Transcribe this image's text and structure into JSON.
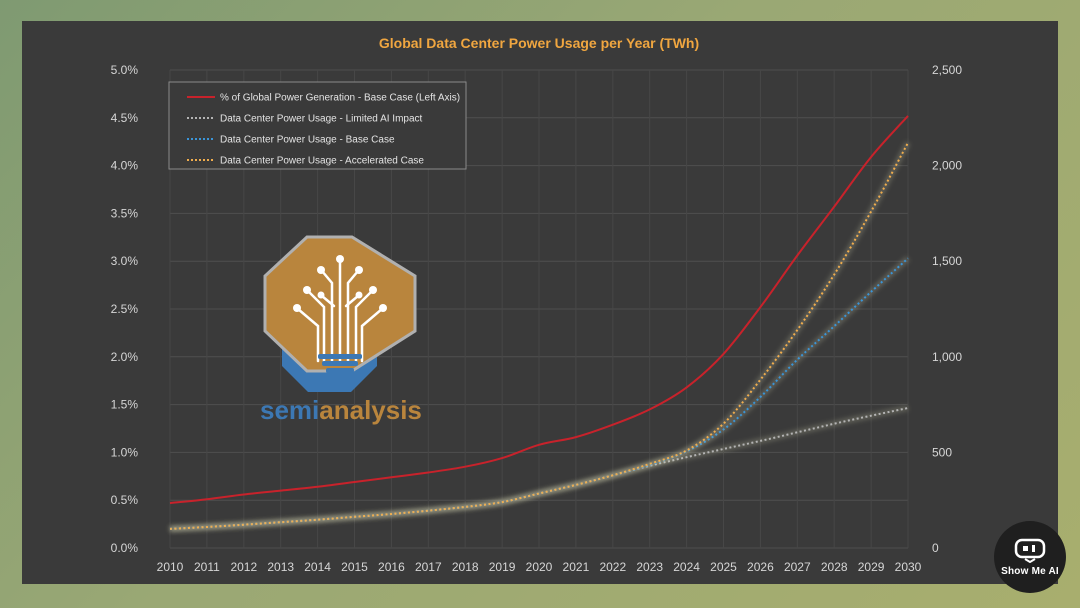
{
  "chart_data": {
    "type": "line",
    "title": "Global Data Center Power Usage per Year (TWh)",
    "x": [
      2010,
      2011,
      2012,
      2013,
      2014,
      2015,
      2016,
      2017,
      2018,
      2019,
      2020,
      2021,
      2022,
      2023,
      2024,
      2025,
      2026,
      2027,
      2028,
      2029,
      2030
    ],
    "y_left": {
      "ticks": [
        "0.0%",
        "0.5%",
        "1.0%",
        "1.5%",
        "2.0%",
        "2.5%",
        "3.0%",
        "3.5%",
        "4.0%",
        "4.5%",
        "5.0%"
      ],
      "range": [
        0,
        5.0
      ],
      "unit": "%"
    },
    "y_right": {
      "ticks": [
        "0",
        "500",
        "1,000",
        "1,500",
        "2,000",
        "2,500"
      ],
      "range": [
        0,
        2500
      ],
      "unit": "TWh"
    },
    "grid": true,
    "legend_position": "top-left",
    "series": [
      {
        "name": "% of Global Power Generation - Base Case (Left Axis)",
        "axis": "left",
        "style": "solid",
        "color": "#c8222b",
        "values": [
          0.47,
          0.51,
          0.56,
          0.6,
          0.64,
          0.69,
          0.74,
          0.79,
          0.85,
          0.94,
          1.08,
          1.16,
          1.29,
          1.45,
          1.68,
          2.03,
          2.52,
          3.06,
          3.57,
          4.09,
          4.52
        ]
      },
      {
        "name": "Data Center Power Usage - Limited AI Impact",
        "axis": "right",
        "style": "dotted",
        "color": "#b4b4b4",
        "values": [
          100,
          110,
          122,
          135,
          148,
          163,
          178,
          195,
          215,
          240,
          285,
          330,
          380,
          430,
          475,
          518,
          560,
          605,
          650,
          692,
          732
        ]
      },
      {
        "name": "Data Center Power Usage - Base Case",
        "axis": "right",
        "style": "dotted",
        "color": "#3a95d8",
        "values": [
          100,
          110,
          122,
          135,
          148,
          163,
          178,
          195,
          215,
          240,
          285,
          330,
          380,
          435,
          505,
          620,
          790,
          985,
          1160,
          1340,
          1515
        ]
      },
      {
        "name": "Data Center Power Usage - Accelerated Case",
        "axis": "right",
        "style": "dotted",
        "color": "#f0ad4e",
        "values": [
          100,
          110,
          122,
          135,
          148,
          163,
          178,
          195,
          215,
          240,
          285,
          330,
          380,
          440,
          510,
          650,
          880,
          1140,
          1430,
          1760,
          2120
        ]
      }
    ]
  },
  "logo": {
    "name": "semianalysis",
    "text_semi": "semi",
    "text_analysis": "analysis",
    "color_orange": "#b9853d",
    "color_blue": "#3c78b4"
  },
  "badge": {
    "text": "Show Me AI",
    "icon": "robot-face-icon"
  }
}
